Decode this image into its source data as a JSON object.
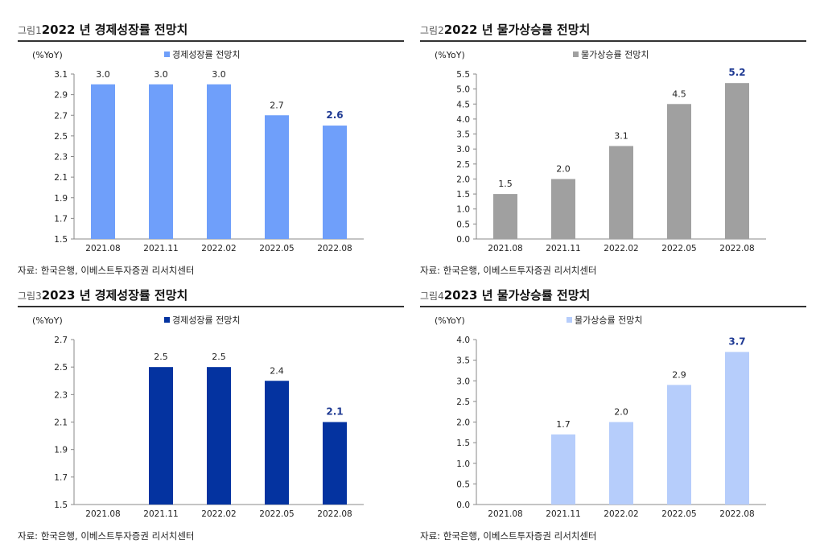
{
  "source_text": "자료: 한국은행, 이베스트투자증권 리서치센터",
  "chart_data": [
    {
      "type": "bar",
      "title_prefix": "그림1",
      "title": "2022 년 경제성장률 전망치",
      "unit": "(%YoY)",
      "legend": "경제성장률 전망치",
      "color": "#6f9ffa",
      "categories": [
        "2021.08",
        "2021.11",
        "2022.02",
        "2022.05",
        "2022.08"
      ],
      "values": [
        3.0,
        3.0,
        3.0,
        2.7,
        2.6
      ],
      "value_labels": [
        "3.0",
        "3.0",
        "3.0",
        "2.7",
        "2.6"
      ],
      "highlight_last": true,
      "ylim": [
        1.5,
        3.1
      ],
      "yticks": [
        "1.5",
        "1.7",
        "1.9",
        "2.1",
        "2.3",
        "2.5",
        "2.7",
        "2.9",
        "3.1"
      ],
      "legend_position": "top-center"
    },
    {
      "type": "bar",
      "title_prefix": "그림2",
      "title": "2022 년 물가상승률 전망치",
      "unit": "(%YoY)",
      "legend": "물가상승률 전망치",
      "color": "#a0a0a0",
      "categories": [
        "2021.08",
        "2021.11",
        "2022.02",
        "2022.05",
        "2022.08"
      ],
      "values": [
        1.5,
        2.0,
        3.1,
        4.5,
        5.2
      ],
      "value_labels": [
        "1.5",
        "2.0",
        "3.1",
        "4.5",
        "5.2"
      ],
      "highlight_last": true,
      "ylim": [
        0.0,
        5.5
      ],
      "yticks": [
        "0.0",
        "0.5",
        "1.0",
        "1.5",
        "2.0",
        "2.5",
        "3.0",
        "3.5",
        "4.0",
        "4.5",
        "5.0",
        "5.5"
      ],
      "legend_position": "top-left"
    },
    {
      "type": "bar",
      "title_prefix": "그림3",
      "title": "2023 년 경제성장률 전망치",
      "unit": "(%YoY)",
      "legend": "경제성장률 전망치",
      "color": "#0433a0",
      "categories": [
        "2021.08",
        "2021.11",
        "2022.02",
        "2022.05",
        "2022.08"
      ],
      "values": [
        null,
        2.5,
        2.5,
        2.4,
        2.1
      ],
      "value_labels": [
        "",
        "2.5",
        "2.5",
        "2.4",
        "2.1"
      ],
      "highlight_last": true,
      "ylim": [
        1.5,
        2.7
      ],
      "yticks": [
        "1.5",
        "1.7",
        "1.9",
        "2.1",
        "2.3",
        "2.5",
        "2.7"
      ],
      "legend_position": "top-center"
    },
    {
      "type": "bar",
      "title_prefix": "그림4",
      "title": "2023 년 물가상승률 전망치",
      "unit": "(%YoY)",
      "legend": "물가상승률 전망치",
      "color": "#b6cdfb",
      "categories": [
        "2021.08",
        "2021.11",
        "2022.02",
        "2022.05",
        "2022.08"
      ],
      "values": [
        null,
        1.7,
        2.0,
        2.9,
        3.7
      ],
      "value_labels": [
        "",
        "1.7",
        "2.0",
        "2.9",
        "3.7"
      ],
      "highlight_last": true,
      "ylim": [
        0.0,
        4.0
      ],
      "yticks": [
        "0.0",
        "0.5",
        "1.0",
        "1.5",
        "2.0",
        "2.5",
        "3.0",
        "3.5",
        "4.0"
      ],
      "legend_position": "top-center"
    }
  ]
}
